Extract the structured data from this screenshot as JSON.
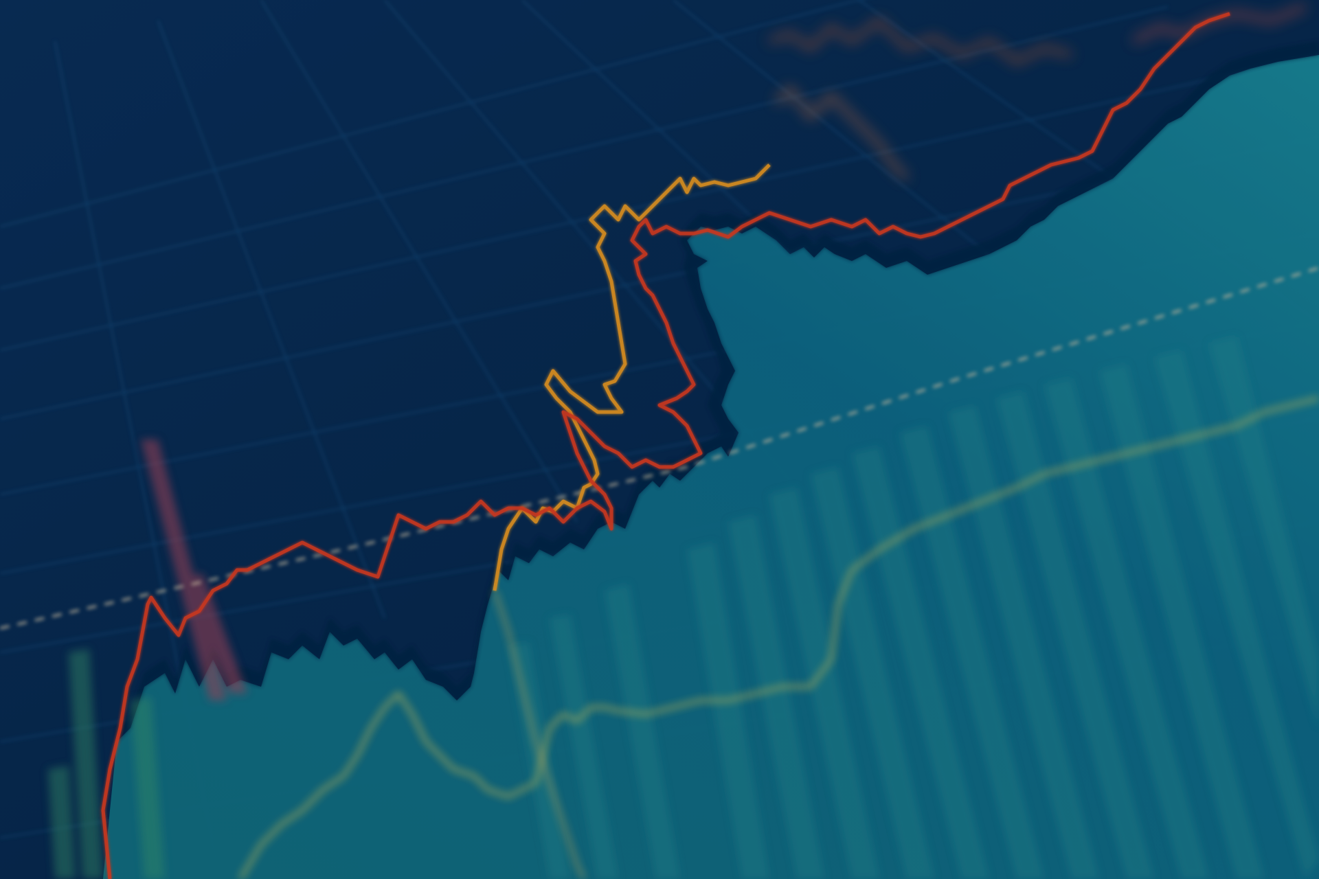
{
  "scene": {
    "description_label": "",
    "colors": {
      "background_dark": "#06264a",
      "background_mid": "#0a3a63",
      "area_teal": "#0f6e86",
      "area_teal_light": "#1a8a9a",
      "grid_line": "#1d5a8c",
      "red_line": "#e23a1c",
      "orange_line": "#f29a1f",
      "amber_line": "#e8b33e",
      "dashed_line": "#d9c6a6",
      "bar_teal": "#2f8f8f",
      "bar_red": "#a04048",
      "yellow_green_line": "#c9c25a"
    }
  }
}
